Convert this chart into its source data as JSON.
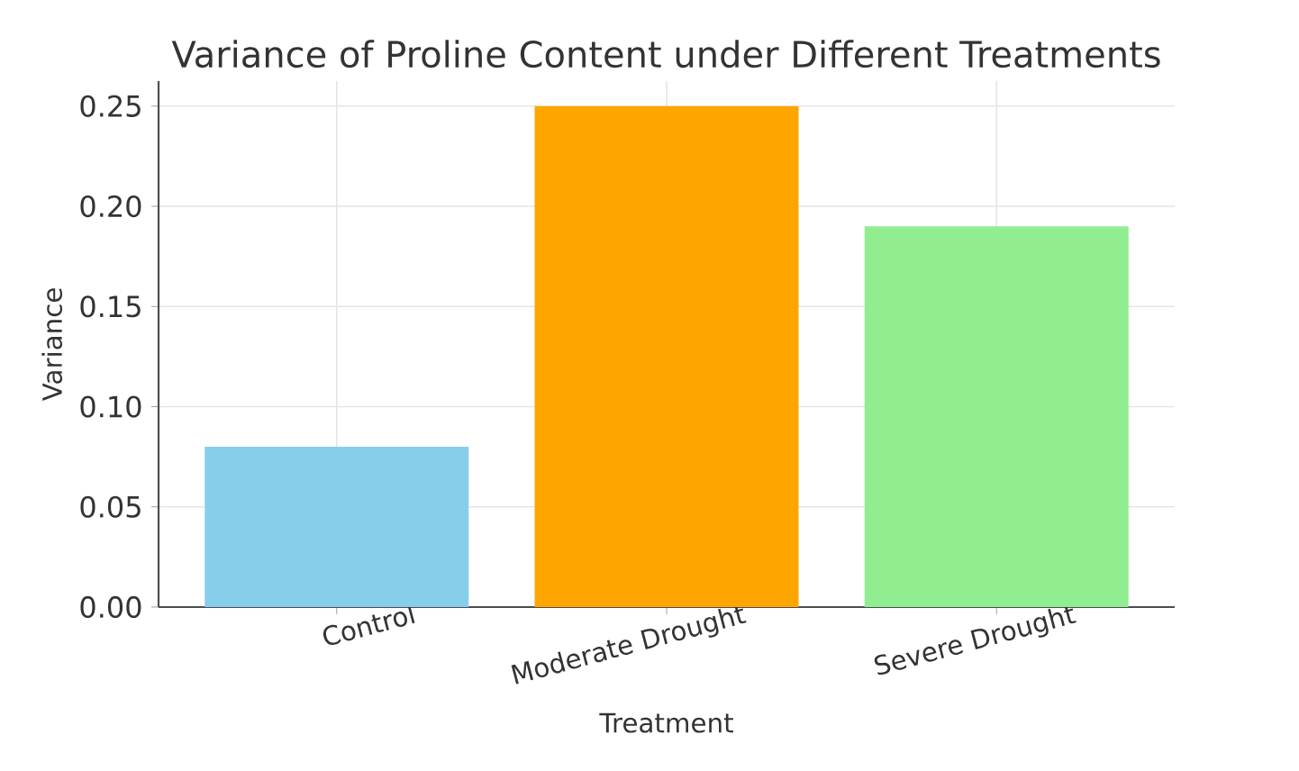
{
  "chart_data": {
    "type": "bar",
    "title": "Variance of Proline Content under Different Treatments",
    "xlabel": "Treatment",
    "ylabel": "Variance",
    "categories": [
      "Control",
      "Moderate Drought",
      "Severe Drought"
    ],
    "values": [
      0.08,
      0.25,
      0.19
    ],
    "colors": [
      "#87ceeb",
      "#ffa500",
      "#90ee90"
    ],
    "ylim": [
      0,
      0.2625
    ],
    "yticks": [
      {
        "value": 0,
        "label": "0.00"
      },
      {
        "value": 0.05,
        "label": "0.05"
      },
      {
        "value": 0.1,
        "label": "0.10"
      },
      {
        "value": 0.15,
        "label": "0.15"
      },
      {
        "value": 0.2,
        "label": "0.20"
      },
      {
        "value": 0.25,
        "label": "0.25"
      }
    ],
    "grid": true
  }
}
